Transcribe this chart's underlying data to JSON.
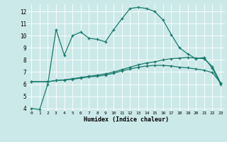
{
  "title": "",
  "xlabel": "Humidex (Indice chaleur)",
  "ylabel": "",
  "bg_color": "#cce9e9",
  "line_color": "#1a7a6e",
  "xlim": [
    -0.5,
    23.5
  ],
  "ylim": [
    3.8,
    12.6
  ],
  "yticks": [
    4,
    5,
    6,
    7,
    8,
    9,
    10,
    11,
    12
  ],
  "xticks": [
    0,
    1,
    2,
    3,
    4,
    5,
    6,
    7,
    8,
    9,
    10,
    11,
    12,
    13,
    14,
    15,
    16,
    17,
    18,
    19,
    20,
    21,
    22,
    23
  ],
  "curve1_x": [
    0,
    1,
    2,
    3,
    4,
    5,
    6,
    7,
    8,
    9,
    10,
    11,
    12,
    13,
    14,
    15,
    16,
    17,
    18,
    19,
    20,
    21,
    22,
    23
  ],
  "curve1_y": [
    4.0,
    3.9,
    6.0,
    10.5,
    8.4,
    10.0,
    10.3,
    9.8,
    9.7,
    9.5,
    10.5,
    11.4,
    12.25,
    12.35,
    12.25,
    12.0,
    11.3,
    10.1,
    9.0,
    8.5,
    8.1,
    8.2,
    7.3,
    6.0
  ],
  "curve2_x": [
    0,
    2,
    3,
    4,
    5,
    6,
    7,
    8,
    9,
    10,
    11,
    12,
    13,
    14,
    15,
    16,
    17,
    18,
    19,
    20,
    21,
    22,
    23
  ],
  "curve2_y": [
    6.2,
    6.2,
    6.3,
    6.35,
    6.4,
    6.5,
    6.6,
    6.65,
    6.75,
    6.9,
    7.1,
    7.25,
    7.4,
    7.5,
    7.55,
    7.55,
    7.5,
    7.4,
    7.35,
    7.25,
    7.15,
    6.95,
    6.1
  ],
  "curve3_x": [
    0,
    2,
    3,
    4,
    5,
    6,
    7,
    8,
    9,
    10,
    11,
    12,
    13,
    14,
    15,
    16,
    17,
    18,
    19,
    20,
    21,
    22,
    23
  ],
  "curve3_y": [
    6.2,
    6.2,
    6.3,
    6.35,
    6.45,
    6.55,
    6.65,
    6.75,
    6.85,
    7.0,
    7.2,
    7.4,
    7.6,
    7.75,
    7.85,
    8.0,
    8.1,
    8.15,
    8.2,
    8.15,
    8.1,
    7.45,
    6.1
  ]
}
